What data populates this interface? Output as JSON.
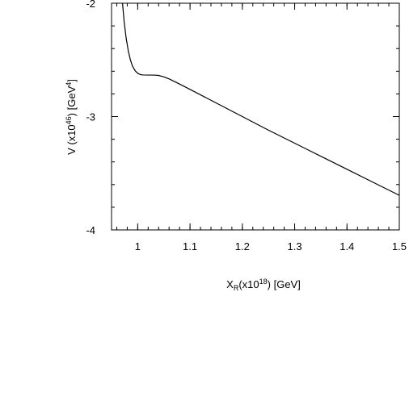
{
  "chart_data": {
    "type": "line",
    "title": "",
    "xlabel": {
      "main": "X",
      "sub": "R",
      "pre": "(x10",
      "sup": "18",
      "post": ") [GeV]"
    },
    "ylabel": {
      "pre": "V (x10",
      "sup1": "46",
      "mid": ") [GeV",
      "sup2": "4",
      "post": "]"
    },
    "xlim": [
      0.95,
      1.5
    ],
    "ylim": [
      -4,
      -2
    ],
    "xticks": [
      {
        "value": 1,
        "label": "1"
      },
      {
        "value": 1.1,
        "label": "1.1"
      },
      {
        "value": 1.2,
        "label": "1.2"
      },
      {
        "value": 1.3,
        "label": "1.3"
      },
      {
        "value": 1.4,
        "label": "1.4"
      },
      {
        "value": 1.5,
        "label": "1.5"
      }
    ],
    "yticks": [
      {
        "value": -2,
        "label": "-2"
      },
      {
        "value": -3,
        "label": "-3"
      },
      {
        "value": -4,
        "label": "-4"
      }
    ],
    "grid": false,
    "legend": "none",
    "series": [
      {
        "color": "#000000",
        "x": [
          0.971,
          0.974,
          0.978,
          0.982,
          0.986,
          0.99,
          0.995,
          1.0,
          1.005,
          1.01,
          1.02,
          1.03,
          1.04,
          1.05,
          1.06,
          1.08,
          1.1,
          1.15,
          1.2,
          1.25,
          1.3,
          1.35,
          1.4,
          1.45,
          1.5
        ],
        "y": [
          -2.0,
          -2.16,
          -2.31,
          -2.42,
          -2.5,
          -2.555,
          -2.595,
          -2.618,
          -2.629,
          -2.633,
          -2.634,
          -2.634,
          -2.637,
          -2.65,
          -2.668,
          -2.713,
          -2.76,
          -2.88,
          -3.0,
          -3.12,
          -3.235,
          -3.35,
          -3.465,
          -3.58,
          -3.695
        ]
      }
    ]
  }
}
